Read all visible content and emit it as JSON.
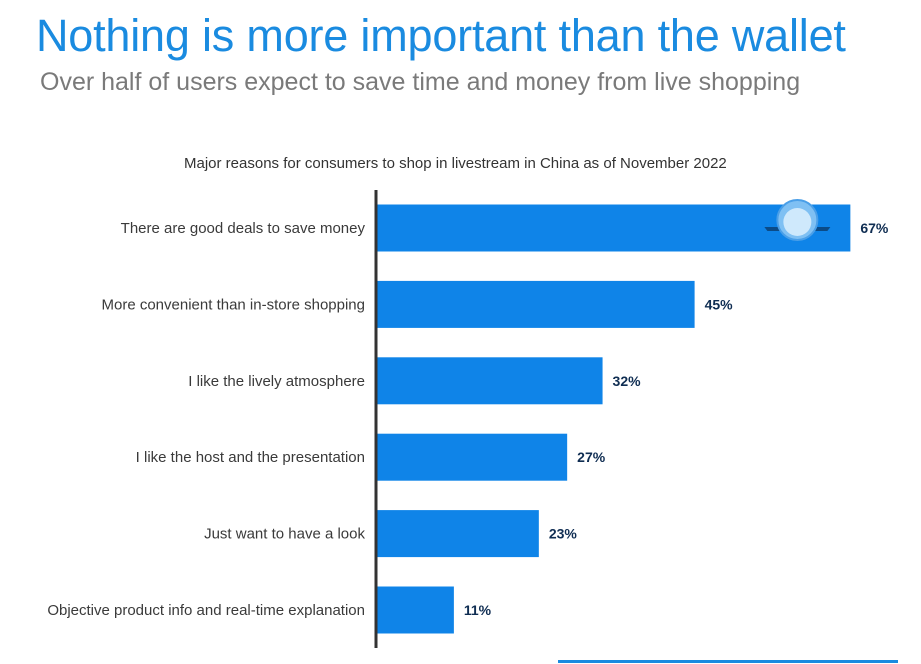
{
  "header": {
    "title": "Nothing is more important than the wallet",
    "subtitle": "Over half of users expect to save time and money from live shopping"
  },
  "colors": {
    "title": "#1a8be0",
    "subtitle": "#7a7a7a",
    "bar": "#0f84e8",
    "value_label": "#0f2d52",
    "category_label": "#3a3a3a",
    "axis": "#333333",
    "chart_title": "#333333",
    "footer": "#1a8be0"
  },
  "chart_data": {
    "type": "bar",
    "orientation": "horizontal",
    "title": "Major reasons for consumers to shop in livestream in China as of November 2022",
    "categories": [
      "There are good deals to save money",
      "More convenient than in-store shopping",
      "I like the lively atmosphere",
      "I like the host and the presentation",
      "Just want to have a look",
      "Objective product info and real-time explanation"
    ],
    "values": [
      67,
      45,
      32,
      27,
      23,
      11
    ],
    "value_labels": [
      "67%",
      "45%",
      "32%",
      "27%",
      "23%",
      "11%"
    ],
    "unit": "%",
    "xlim": [
      0,
      70
    ],
    "grid": false,
    "legend": "none"
  }
}
